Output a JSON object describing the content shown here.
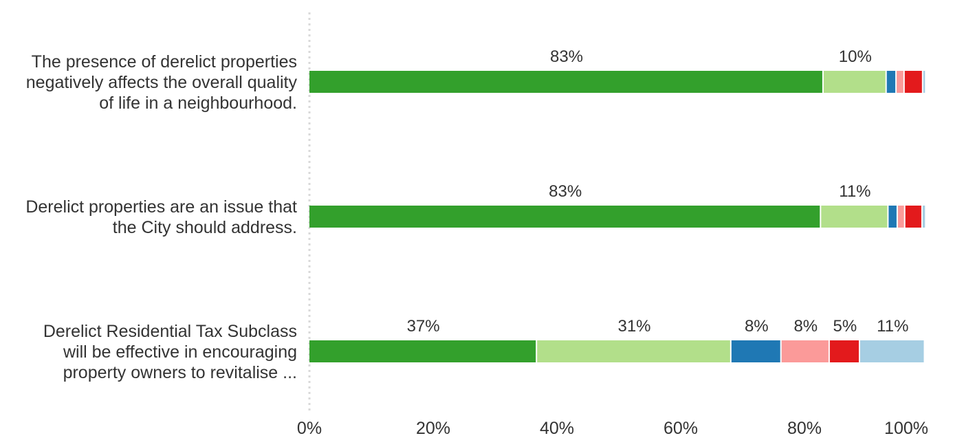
{
  "chart_data": {
    "type": "bar",
    "orientation": "horizontal",
    "stacked": true,
    "categories": [
      [
        "The presence of derelict properties",
        "negatively affects the overall quality",
        "of life in a neighbourhood."
      ],
      [
        "Derelict properties are an issue that",
        "the City should address."
      ],
      [
        "Derelict Residential Tax Subclass",
        "will be effective in encouraging",
        "property owners to revitalise ..."
      ]
    ],
    "series": [
      {
        "values": [
          83.1,
          82.7,
          36.8
        ],
        "labels": [
          "83%",
          "83%",
          "37%"
        ]
      },
      {
        "values": [
          10.2,
          10.9,
          31.4
        ],
        "labels": [
          "10%",
          "11%",
          "31%"
        ]
      },
      {
        "values": [
          1.6,
          1.5,
          8.1
        ],
        "labels": [
          "",
          "",
          "8%"
        ]
      },
      {
        "values": [
          1.3,
          1.2,
          7.8
        ],
        "labels": [
          "",
          "",
          "8%"
        ]
      },
      {
        "values": [
          3.0,
          2.8,
          4.9
        ],
        "labels": [
          "",
          "",
          "5%"
        ]
      },
      {
        "values": [
          0.5,
          0.6,
          10.5
        ],
        "labels": [
          "",
          "",
          "11%"
        ]
      }
    ],
    "colors": [
      "#33a02c",
      "#b2df8a",
      "#1f78b4",
      "#fb9a99",
      "#e31a1c",
      "#a6cee3"
    ],
    "xlim": [
      0,
      100
    ],
    "xticks": [
      "0%",
      "20%",
      "40%",
      "60%",
      "80%",
      "100%"
    ],
    "grid": false,
    "legend": "none"
  }
}
